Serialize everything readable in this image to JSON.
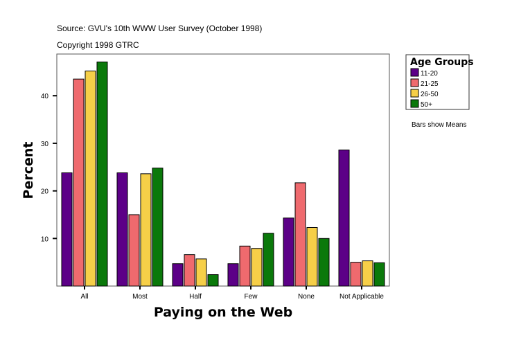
{
  "chart_data": {
    "type": "bar",
    "source_note": "Source: GVU's 10th WWW User Survey (October 1998)",
    "copyright_note": "Copyright 1998 GTRC",
    "xlabel": "Paying on the Web",
    "ylabel": "Percent",
    "categories": [
      "All",
      "Most",
      "Half",
      "Few",
      "None",
      "Not Applicable"
    ],
    "ylim": [
      0,
      48.5
    ],
    "yticks": [
      10,
      20,
      30,
      40
    ],
    "grid": false,
    "legend": {
      "title": "Age Groups",
      "position": "right"
    },
    "footnote": "Bars show Means",
    "series": [
      {
        "name": "11-20",
        "color": "#5c0087",
        "values": [
          23.8,
          23.8,
          4.7,
          4.7,
          14.3,
          28.6
        ]
      },
      {
        "name": "21-25",
        "color": "#ef6a6e",
        "values": [
          43.5,
          15.0,
          6.6,
          8.4,
          21.7,
          5.0
        ]
      },
      {
        "name": "26-50",
        "color": "#f6cf48",
        "values": [
          45.2,
          23.6,
          5.7,
          7.9,
          12.3,
          5.3
        ]
      },
      {
        "name": "50+",
        "color": "#0a790a",
        "values": [
          47.1,
          24.8,
          2.4,
          11.1,
          10.0,
          4.9
        ]
      }
    ]
  }
}
